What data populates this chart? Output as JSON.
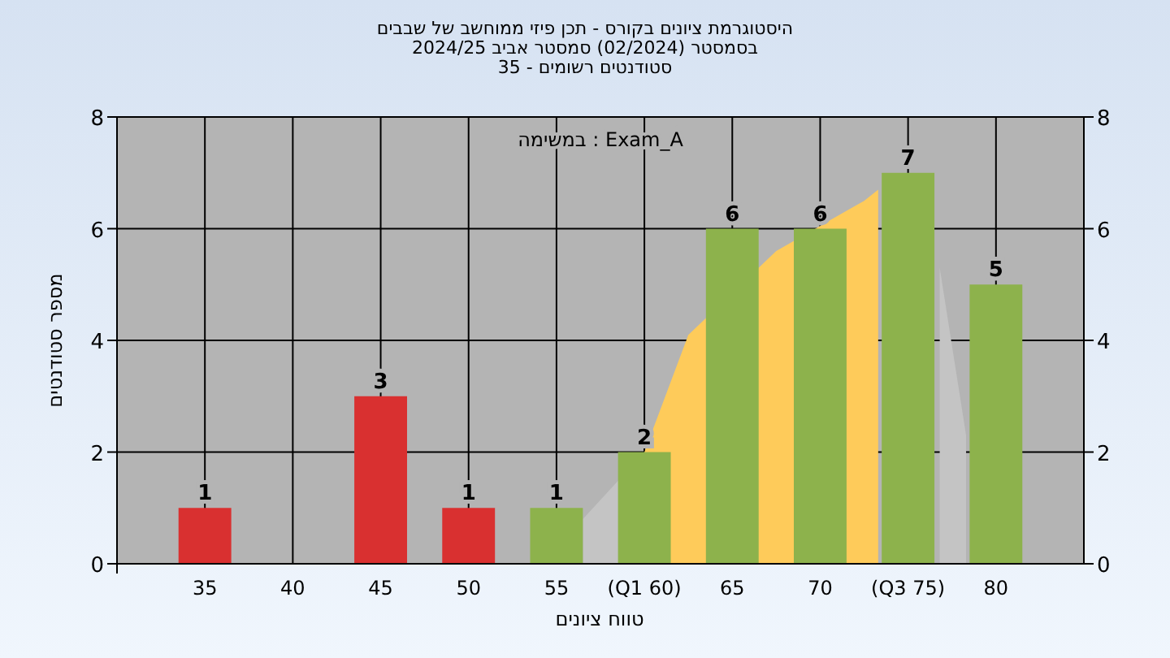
{
  "chart_data": {
    "type": "bar",
    "title": "היסטוגרמת ציונים בקורס - תכן פיזי ממוחשב של שבבים",
    "subtitle": [
      "בסמסטר (02/2024) סמסטר אביב 2024/25",
      "סטודנטים רשומים - 35"
    ],
    "xlabel": "טווח ציונים",
    "ylabel": "מספר סטודנטים",
    "annotations": [
      "במשימה : Exam_A"
    ],
    "x": [
      35,
      40,
      45,
      50,
      55,
      60,
      65,
      70,
      75,
      80
    ],
    "series": [
      {
        "type": "area",
        "color": "#c4c4c4",
        "x": [
          56.5,
          60
        ],
        "values": [
          0.8,
          2
        ]
      },
      {
        "type": "area",
        "color": "#c4c4c4",
        "x": [
          76.8,
          78.3
        ],
        "values": [
          5.3,
          2.3
        ]
      },
      {
        "type": "area",
        "color": "#fecb5a",
        "x": [
          60,
          62.5,
          67.5,
          72.5,
          73.3
        ],
        "values": [
          2,
          4.1,
          5.6,
          6.5,
          6.7
        ]
      },
      {
        "values": [
          1,
          0,
          3,
          1,
          1,
          2,
          6,
          6,
          7,
          5
        ],
        "colors": [
          "#d93030",
          "#d93030",
          "#d93030",
          "#d93030",
          "#8db24c",
          "#8db24c",
          "#8db24c",
          "#8db24c",
          "#8db24c",
          "#8db24c"
        ],
        "value_labels": [
          "1",
          null,
          "3",
          "1",
          "1",
          "2",
          "6",
          "6",
          "7",
          "5"
        ]
      }
    ],
    "xlim": [
      30,
      85
    ],
    "xticks": [
      35,
      40,
      45,
      50,
      55,
      {
        "value": 60,
        "label": "(Q1 60)"
      },
      65,
      70,
      {
        "value": 75,
        "label": "(Q3 75)"
      },
      80
    ],
    "ylim": [
      0,
      8
    ],
    "yticks": [
      0,
      2,
      4,
      6,
      8
    ],
    "y2lim": [
      0,
      8
    ],
    "y2ticks": [
      0,
      2,
      4,
      6,
      8
    ],
    "grid": true
  }
}
